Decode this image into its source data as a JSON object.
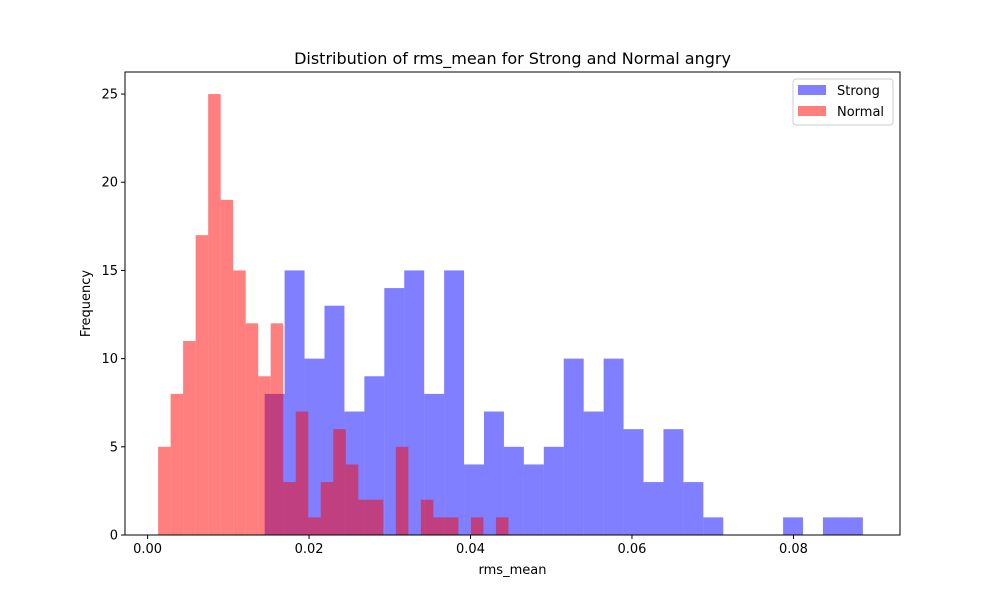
{
  "chart_data": {
    "type": "histogram",
    "title": "Distribution of rms_mean for Strong and Normal angry",
    "xlabel": "rms_mean",
    "ylabel": "Frequency",
    "xlim": [
      -0.0028,
      0.0932
    ],
    "ylim": [
      0,
      26.25
    ],
    "xticks": [
      0.0,
      0.02,
      0.04,
      0.06,
      0.08
    ],
    "xtick_labels": [
      "0.00",
      "0.02",
      "0.04",
      "0.06",
      "0.08"
    ],
    "yticks": [
      0,
      5,
      10,
      15,
      20,
      25
    ],
    "ytick_labels": [
      "0",
      "5",
      "10",
      "15",
      "20",
      "25"
    ],
    "grid": false,
    "legend_position": "top-right",
    "series": [
      {
        "name": "Strong",
        "color": "#0000ff",
        "alpha": 0.5,
        "bin_start": 0.0145,
        "bin_width": 0.00247,
        "counts": [
          8,
          15,
          10,
          13,
          7,
          9,
          14,
          15,
          8,
          15,
          4,
          7,
          5,
          4,
          5,
          10,
          7,
          10,
          6,
          3,
          6,
          3,
          1,
          0,
          0,
          0,
          1,
          0,
          1,
          1
        ]
      },
      {
        "name": "Normal",
        "color": "#ff0000",
        "alpha": 0.5,
        "bin_start": 0.0013,
        "bin_width": 0.00155,
        "counts": [
          5,
          8,
          11,
          17,
          25,
          19,
          15,
          12,
          9,
          12,
          3,
          7,
          1,
          3,
          6,
          4,
          2,
          2,
          0,
          5,
          0,
          2,
          1,
          1,
          0,
          1,
          0,
          1
        ]
      }
    ]
  }
}
